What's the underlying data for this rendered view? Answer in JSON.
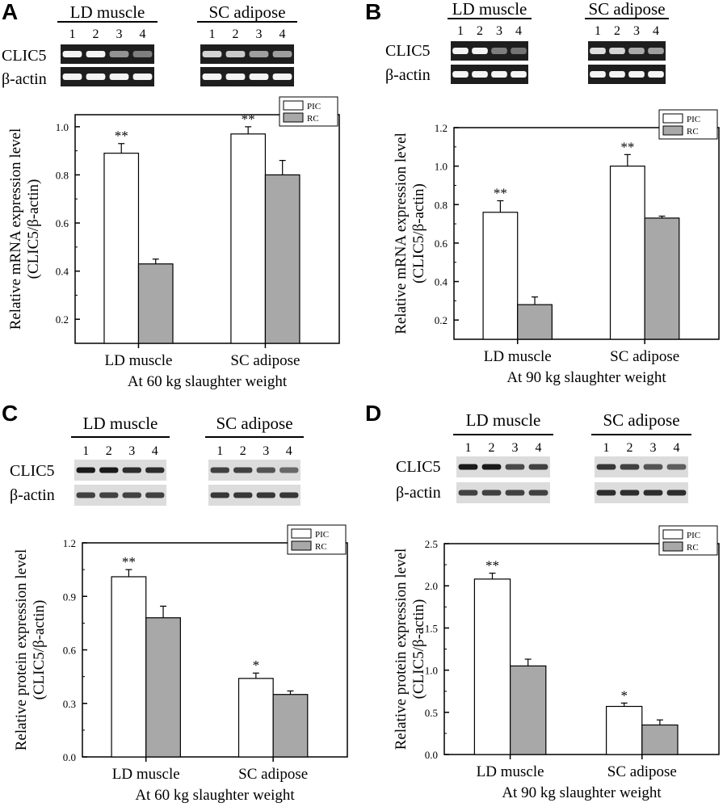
{
  "legend": {
    "series": [
      "PIC",
      "RC"
    ]
  },
  "colors": {
    "PIC": "#ffffff",
    "RC": "#a8a8a8",
    "axis": "#000000",
    "gel_dark": "#1e1e1e",
    "band_light": "#f4f4f4",
    "blot_bg": "#dcdcdc",
    "blot_band": "#1a1a1a"
  },
  "panels": [
    {
      "letter": "A",
      "blot_type": "gel",
      "tissues": [
        "LD muscle",
        "SC adipose"
      ],
      "lanes": [
        "1",
        "2",
        "3",
        "4"
      ],
      "row_labels": [
        "CLIC5",
        "β-actin"
      ],
      "band_strength": {
        "CLIC5": [
          [
            1,
            1,
            0.55,
            0.45
          ],
          [
            0.85,
            0.8,
            0.6,
            0.6
          ]
        ],
        "actin": [
          [
            1,
            1,
            1,
            1
          ],
          [
            1,
            1,
            1,
            1
          ]
        ]
      },
      "chart_data": {
        "type": "bar",
        "categories": [
          "LD muscle",
          "SC adipose"
        ],
        "series": [
          {
            "name": "PIC",
            "values": [
              0.89,
              0.97
            ],
            "errors": [
              0.04,
              0.03
            ],
            "sig": [
              "**",
              "**"
            ]
          },
          {
            "name": "RC",
            "values": [
              0.43,
              0.8
            ],
            "errors": [
              0.02,
              0.06
            ],
            "sig": [
              "",
              ""
            ]
          }
        ],
        "ylabel_line1": "Relative mRNA expression level",
        "ylabel_line2": "(CLIC5/β-actin)",
        "xlabel": "At 60 kg slaughter weight",
        "ylim": [
          0.1,
          1.05
        ],
        "yticks": [
          0.2,
          0.4,
          0.6,
          0.8,
          1.0
        ],
        "ytick_labels": [
          "0.2",
          "0.4",
          "0.6",
          "0.8",
          "1.0"
        ],
        "legend_position": "top-right"
      }
    },
    {
      "letter": "B",
      "blot_type": "gel",
      "tissues": [
        "LD muscle",
        "SC adipose"
      ],
      "lanes": [
        "1",
        "2",
        "3",
        "4"
      ],
      "row_labels": [
        "CLIC5",
        "β-actin"
      ],
      "band_strength": {
        "CLIC5": [
          [
            1,
            1,
            0.45,
            0.4
          ],
          [
            0.9,
            0.85,
            0.65,
            0.6
          ]
        ],
        "actin": [
          [
            1,
            1,
            1,
            1
          ],
          [
            1,
            1,
            1,
            1
          ]
        ]
      },
      "chart_data": {
        "type": "bar",
        "categories": [
          "LD muscle",
          "SC adipose"
        ],
        "series": [
          {
            "name": "PIC",
            "values": [
              0.76,
              1.0
            ],
            "errors": [
              0.06,
              0.06
            ],
            "sig": [
              "**",
              "**"
            ]
          },
          {
            "name": "RC",
            "values": [
              0.28,
              0.73
            ],
            "errors": [
              0.04,
              0.01
            ],
            "sig": [
              "",
              ""
            ]
          }
        ],
        "ylabel_line1": "Relative mRNA expression level",
        "ylabel_line2": "(CLIC5/β-actin)",
        "xlabel": "At 90 kg slaughter weight",
        "ylim": [
          0.1,
          1.2
        ],
        "yticks": [
          0.2,
          0.4,
          0.6,
          0.8,
          1.0,
          1.2
        ],
        "ytick_labels": [
          "0.2",
          "0.4",
          "0.6",
          "0.8",
          "1.0",
          "1.2"
        ],
        "legend_position": "top-right"
      }
    },
    {
      "letter": "C",
      "blot_type": "western",
      "tissues": [
        "LD muscle",
        "SC adipose"
      ],
      "lanes": [
        "1",
        "2",
        "3",
        "4"
      ],
      "row_labels": [
        "CLIC5",
        "β-actin"
      ],
      "band_strength": {
        "CLIC5": [
          [
            1,
            1,
            0.9,
            0.9
          ],
          [
            0.8,
            0.8,
            0.7,
            0.6
          ]
        ],
        "actin": [
          [
            0.8,
            0.8,
            0.8,
            0.8
          ],
          [
            0.85,
            0.85,
            0.85,
            0.85
          ]
        ]
      },
      "chart_data": {
        "type": "bar",
        "categories": [
          "LD muscle",
          "SC adipose"
        ],
        "series": [
          {
            "name": "PIC",
            "values": [
              1.01,
              0.44
            ],
            "errors": [
              0.04,
              0.03
            ],
            "sig": [
              "**",
              "*"
            ]
          },
          {
            "name": "RC",
            "values": [
              0.78,
              0.35
            ],
            "errors": [
              0.065,
              0.02
            ],
            "sig": [
              "",
              ""
            ]
          }
        ],
        "ylabel_line1": "Relative protein expression level",
        "ylabel_line2": "(CLIC5/β-actin)",
        "xlabel": "At 60 kg slaughter weight",
        "ylim": [
          0,
          1.2
        ],
        "yticks": [
          0,
          0.3,
          0.6,
          0.9,
          1.2
        ],
        "ytick_labels": [
          "0.0",
          "0.3",
          "0.6",
          "0.9",
          "1.2"
        ],
        "legend_position": "top-right"
      }
    },
    {
      "letter": "D",
      "blot_type": "western",
      "tissues": [
        "LD muscle",
        "SC adipose"
      ],
      "lanes": [
        "1",
        "2",
        "3",
        "4"
      ],
      "row_labels": [
        "CLIC5",
        "β-actin"
      ],
      "band_strength": {
        "CLIC5": [
          [
            1,
            1,
            0.75,
            0.8
          ],
          [
            0.85,
            0.8,
            0.7,
            0.65
          ]
        ],
        "actin": [
          [
            0.8,
            0.8,
            0.8,
            0.8
          ],
          [
            0.9,
            0.9,
            0.9,
            0.9
          ]
        ]
      },
      "chart_data": {
        "type": "bar",
        "categories": [
          "LD muscle",
          "SC adipose"
        ],
        "series": [
          {
            "name": "PIC",
            "values": [
              2.08,
              0.57
            ],
            "errors": [
              0.07,
              0.04
            ],
            "sig": [
              "**",
              "*"
            ]
          },
          {
            "name": "RC",
            "values": [
              1.05,
              0.35
            ],
            "errors": [
              0.08,
              0.06
            ],
            "sig": [
              "",
              ""
            ]
          }
        ],
        "ylabel_line1": "Relative protein expression level",
        "ylabel_line2": "(CLIC5/β-actin)",
        "xlabel": "At 90 kg slaughter weight",
        "ylim": [
          0,
          2.5
        ],
        "yticks": [
          0,
          0.5,
          1.0,
          1.5,
          2.0,
          2.5
        ],
        "ytick_labels": [
          "0.0",
          "0.5",
          "1.0",
          "1.5",
          "2.0",
          "2.5"
        ],
        "legend_position": "top-right"
      }
    }
  ]
}
